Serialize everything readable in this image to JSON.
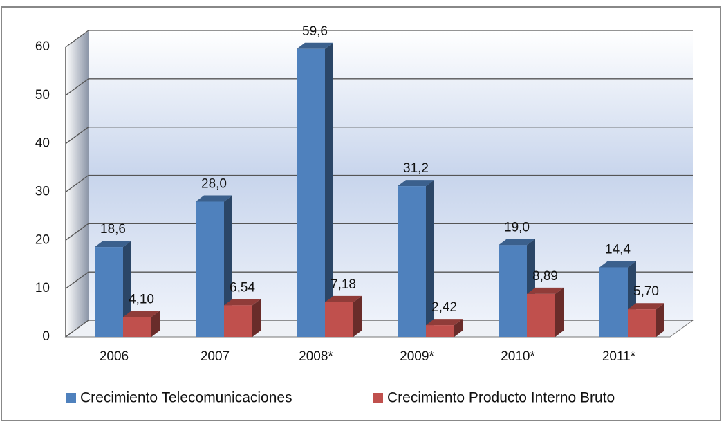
{
  "chart_data": {
    "type": "bar",
    "categories": [
      "2006",
      "2007",
      "2008*",
      "2009*",
      "2010*",
      "2011*"
    ],
    "series": [
      {
        "name": "Crecimiento Telecomunicaciones",
        "color": "#4f81bd",
        "values": [
          18.6,
          28.0,
          59.6,
          31.2,
          19.0,
          14.4
        ],
        "value_labels": [
          "18,6",
          "28,0",
          "59,6",
          "31,2",
          "19,0",
          "14,4"
        ]
      },
      {
        "name": "Crecimiento Producto Interno Bruto",
        "color": "#c0504d",
        "values": [
          4.1,
          6.54,
          7.18,
          2.42,
          8.89,
          5.7
        ],
        "value_labels": [
          "4,10",
          "6,54",
          "7,18",
          "2,42",
          "8,89",
          "5,70"
        ]
      }
    ],
    "ylim": [
      0,
      60
    ],
    "yticks": [
      0,
      10,
      20,
      30,
      40,
      50,
      60
    ],
    "grid": true,
    "legend": "bottom"
  }
}
